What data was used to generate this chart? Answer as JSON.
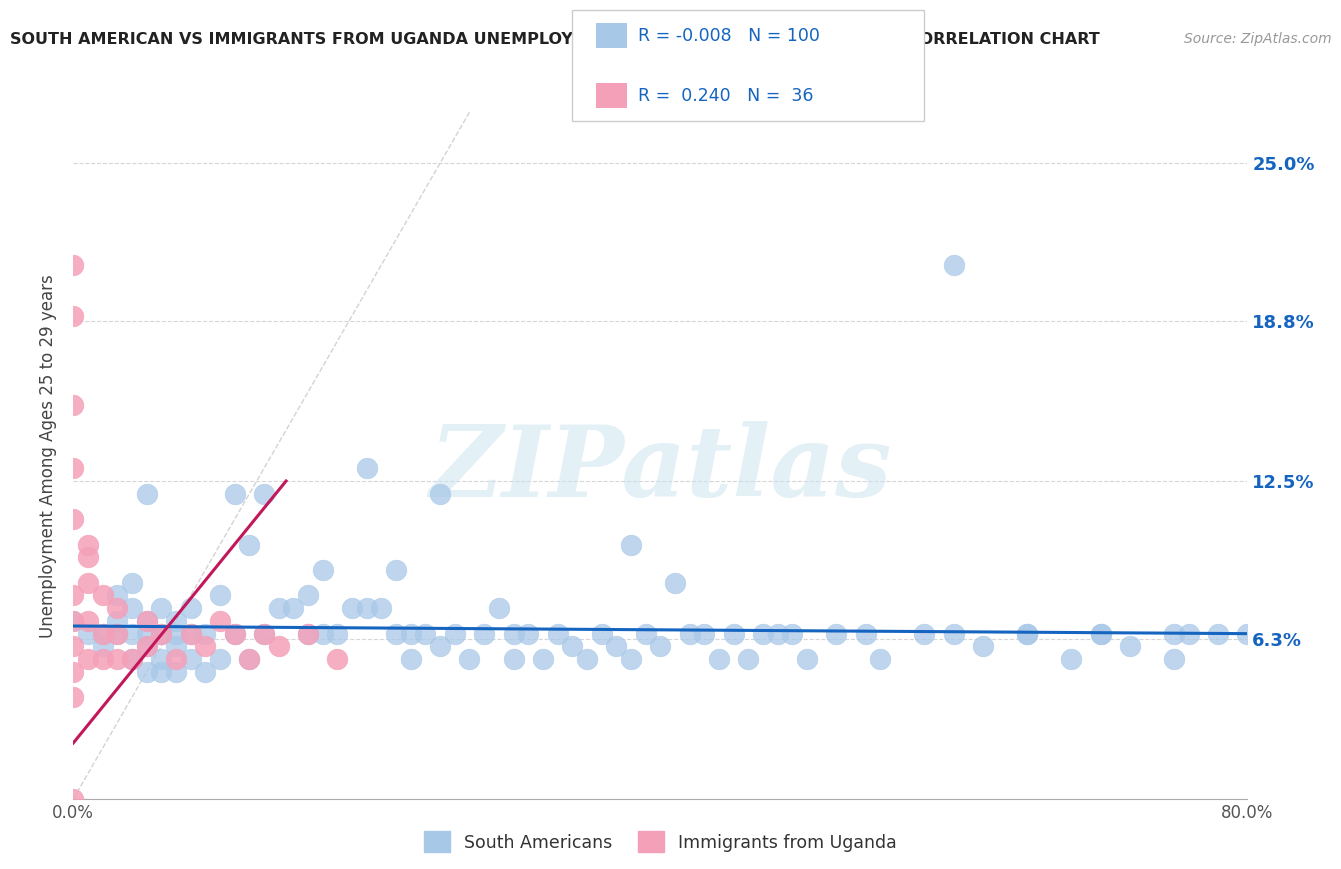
{
  "title": "SOUTH AMERICAN VS IMMIGRANTS FROM UGANDA UNEMPLOYMENT AMONG AGES 25 TO 29 YEARS CORRELATION CHART",
  "source": "Source: ZipAtlas.com",
  "ylabel": "Unemployment Among Ages 25 to 29 years",
  "xlim": [
    0.0,
    0.8
  ],
  "ylim": [
    0.0,
    0.27
  ],
  "yticks": [
    0.0,
    0.063,
    0.125,
    0.188,
    0.25
  ],
  "ytick_labels": [
    "",
    "6.3%",
    "12.5%",
    "18.8%",
    "25.0%"
  ],
  "xticks": [
    0.0,
    0.1,
    0.2,
    0.3,
    0.4,
    0.5,
    0.6,
    0.7,
    0.8
  ],
  "xtick_labels": [
    "0.0%",
    "",
    "",
    "",
    "",
    "",
    "",
    "",
    "80.0%"
  ],
  "blue_R": -0.008,
  "blue_N": 100,
  "pink_R": 0.24,
  "pink_N": 36,
  "blue_color": "#a8c8e8",
  "pink_color": "#f4a0b8",
  "trend_blue_color": "#1565C0",
  "trend_pink_color": "#c2185b",
  "diag_color": "#c8c8c8",
  "watermark": "ZIPatlas",
  "blue_scatter_x": [
    0.0,
    0.01,
    0.02,
    0.02,
    0.03,
    0.03,
    0.03,
    0.04,
    0.04,
    0.04,
    0.04,
    0.05,
    0.05,
    0.05,
    0.05,
    0.05,
    0.06,
    0.06,
    0.06,
    0.06,
    0.07,
    0.07,
    0.07,
    0.07,
    0.08,
    0.08,
    0.08,
    0.09,
    0.09,
    0.1,
    0.1,
    0.11,
    0.11,
    0.12,
    0.12,
    0.13,
    0.13,
    0.14,
    0.15,
    0.16,
    0.16,
    0.17,
    0.17,
    0.18,
    0.19,
    0.2,
    0.2,
    0.21,
    0.22,
    0.22,
    0.23,
    0.23,
    0.24,
    0.25,
    0.25,
    0.26,
    0.27,
    0.28,
    0.29,
    0.3,
    0.3,
    0.31,
    0.32,
    0.33,
    0.34,
    0.35,
    0.36,
    0.37,
    0.38,
    0.39,
    0.4,
    0.41,
    0.42,
    0.43,
    0.44,
    0.45,
    0.46,
    0.47,
    0.48,
    0.49,
    0.5,
    0.52,
    0.54,
    0.55,
    0.38,
    0.58,
    0.6,
    0.62,
    0.65,
    0.68,
    0.7,
    0.72,
    0.75,
    0.76,
    0.78,
    0.8,
    0.6,
    0.65,
    0.7,
    0.75
  ],
  "blue_scatter_y": [
    0.07,
    0.065,
    0.06,
    0.065,
    0.065,
    0.07,
    0.08,
    0.055,
    0.065,
    0.075,
    0.085,
    0.05,
    0.06,
    0.065,
    0.07,
    0.12,
    0.05,
    0.055,
    0.065,
    0.075,
    0.05,
    0.06,
    0.065,
    0.07,
    0.055,
    0.065,
    0.075,
    0.05,
    0.065,
    0.055,
    0.08,
    0.065,
    0.12,
    0.055,
    0.1,
    0.065,
    0.12,
    0.075,
    0.075,
    0.065,
    0.08,
    0.065,
    0.09,
    0.065,
    0.075,
    0.075,
    0.13,
    0.075,
    0.065,
    0.09,
    0.055,
    0.065,
    0.065,
    0.06,
    0.12,
    0.065,
    0.055,
    0.065,
    0.075,
    0.055,
    0.065,
    0.065,
    0.055,
    0.065,
    0.06,
    0.055,
    0.065,
    0.06,
    0.055,
    0.065,
    0.06,
    0.085,
    0.065,
    0.065,
    0.055,
    0.065,
    0.055,
    0.065,
    0.065,
    0.065,
    0.055,
    0.065,
    0.065,
    0.055,
    0.1,
    0.065,
    0.065,
    0.06,
    0.065,
    0.055,
    0.065,
    0.06,
    0.065,
    0.065,
    0.065,
    0.065,
    0.21,
    0.065,
    0.065,
    0.055
  ],
  "pink_scatter_x": [
    0.0,
    0.0,
    0.0,
    0.0,
    0.0,
    0.0,
    0.0,
    0.0,
    0.0,
    0.0,
    0.0,
    0.01,
    0.01,
    0.01,
    0.01,
    0.01,
    0.02,
    0.02,
    0.02,
    0.03,
    0.03,
    0.03,
    0.04,
    0.05,
    0.05,
    0.06,
    0.07,
    0.08,
    0.09,
    0.1,
    0.11,
    0.12,
    0.13,
    0.14,
    0.16,
    0.18
  ],
  "pink_scatter_y": [
    0.0,
    0.04,
    0.05,
    0.06,
    0.07,
    0.08,
    0.11,
    0.13,
    0.155,
    0.19,
    0.21,
    0.055,
    0.07,
    0.085,
    0.095,
    0.1,
    0.055,
    0.065,
    0.08,
    0.055,
    0.065,
    0.075,
    0.055,
    0.06,
    0.07,
    0.065,
    0.055,
    0.065,
    0.06,
    0.07,
    0.065,
    0.055,
    0.065,
    0.06,
    0.065,
    0.055
  ],
  "blue_trend_x": [
    0.0,
    0.8
  ],
  "blue_trend_y": [
    0.068,
    0.065
  ],
  "pink_trend_x": [
    0.0,
    0.145
  ],
  "pink_trend_y": [
    0.022,
    0.125
  ]
}
